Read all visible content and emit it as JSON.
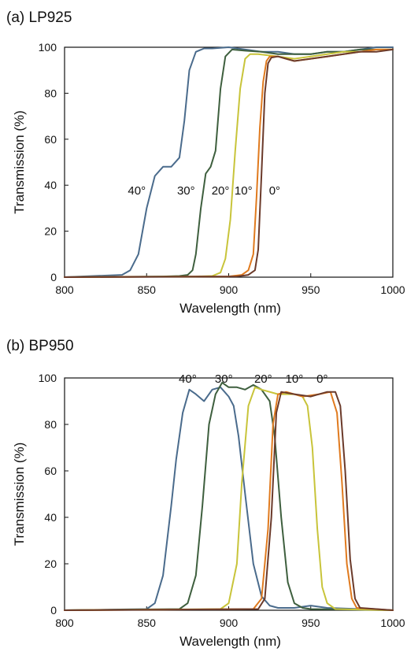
{
  "panels": [
    {
      "title": "(a) LP925"
    },
    {
      "title": "(b) BP950"
    }
  ],
  "chart_data": [
    {
      "type": "line",
      "title": "(a) LP925",
      "xlabel": "Wavelength (nm)",
      "ylabel": "Transmission (%)",
      "xlim": [
        800,
        1000
      ],
      "ylim": [
        0,
        100
      ],
      "xticks": [
        800,
        850,
        900,
        950,
        1000
      ],
      "yticks": [
        0,
        20,
        40,
        60,
        80,
        100
      ],
      "grid": false,
      "annotations": [
        {
          "text": "40°",
          "x": 844,
          "y": 36
        },
        {
          "text": "30°",
          "x": 874,
          "y": 36
        },
        {
          "text": "20°",
          "x": 895,
          "y": 36
        },
        {
          "text": "10°",
          "x": 909,
          "y": 36
        },
        {
          "text": "0°",
          "x": 928,
          "y": 36
        }
      ],
      "series": [
        {
          "color": "#4a6b8c",
          "x": [
            800,
            835,
            840,
            845,
            850,
            855,
            860,
            865,
            870,
            873,
            876,
            880,
            885,
            890,
            900,
            910,
            920,
            930,
            940,
            950,
            960,
            970,
            980,
            990,
            1000
          ],
          "y": [
            0,
            1,
            3,
            10,
            30,
            44,
            48,
            48,
            52,
            68,
            90,
            98,
            99.5,
            99.5,
            100,
            99,
            98,
            98,
            97,
            97,
            98,
            98,
            99,
            100,
            100
          ]
        },
        {
          "color": "#3e5f3e",
          "x": [
            800,
            860,
            870,
            875,
            878,
            880,
            883,
            886,
            889,
            892,
            895,
            898,
            902,
            910,
            920,
            930,
            940,
            950,
            960,
            970,
            980,
            990,
            1000
          ],
          "y": [
            0,
            0.3,
            0.5,
            1,
            3,
            10,
            30,
            45,
            48,
            55,
            82,
            96,
            99,
            98.5,
            98,
            97,
            97,
            97,
            98,
            98,
            99,
            99,
            99
          ]
        },
        {
          "color": "#c8c43a",
          "x": [
            800,
            880,
            890,
            895,
            898,
            901,
            904,
            907,
            910,
            913,
            918,
            930,
            940,
            950,
            960,
            970,
            980,
            990,
            1000
          ],
          "y": [
            0,
            0.3,
            0.5,
            2,
            8,
            25,
            55,
            82,
            95,
            97,
            97,
            96,
            95,
            96,
            97,
            98,
            98,
            99,
            99
          ]
        },
        {
          "color": "#e07a1e",
          "x": [
            800,
            900,
            908,
            912,
            915,
            917,
            919,
            921,
            923,
            925,
            930,
            935,
            940,
            950,
            960,
            970,
            980,
            990,
            1000
          ],
          "y": [
            0,
            0.3,
            1,
            3,
            10,
            35,
            65,
            85,
            94,
            96,
            96,
            95,
            94,
            95,
            96,
            97,
            98,
            99,
            99
          ]
        },
        {
          "color": "#6b3a2a",
          "x": [
            800,
            905,
            912,
            916,
            918,
            920,
            922,
            924,
            926,
            930,
            935,
            940,
            950,
            960,
            970,
            980,
            990,
            1000
          ],
          "y": [
            0,
            0.3,
            1,
            3,
            12,
            45,
            80,
            93,
            95.5,
            96,
            95,
            94,
            95,
            96,
            97,
            98,
            98,
            99
          ]
        }
      ]
    },
    {
      "type": "line",
      "title": "(b) BP950",
      "xlabel": "Wavelength (nm)",
      "ylabel": "Transmission (%)",
      "xlim": [
        800,
        1000
      ],
      "ylim": [
        0,
        100
      ],
      "xticks": [
        800,
        850,
        900,
        950,
        1000
      ],
      "yticks": [
        0,
        20,
        40,
        60,
        80,
        100
      ],
      "grid": false,
      "annotations": [
        {
          "text": "40°",
          "x": 875,
          "y": 98
        },
        {
          "text": "30°",
          "x": 897,
          "y": 98
        },
        {
          "text": "20°",
          "x": 921,
          "y": 98
        },
        {
          "text": "10°",
          "x": 940,
          "y": 98
        },
        {
          "text": "0°",
          "x": 957,
          "y": 98
        }
      ],
      "series": [
        {
          "color": "#4a6b8c",
          "x": [
            800,
            850,
            855,
            860,
            865,
            868,
            872,
            876,
            880,
            885,
            890,
            895,
            900,
            903,
            906,
            910,
            915,
            920,
            925,
            930,
            940,
            950,
            960,
            1000
          ],
          "y": [
            0,
            0.5,
            3,
            15,
            45,
            65,
            85,
            95,
            93,
            90,
            95,
            96,
            92,
            88,
            75,
            50,
            20,
            6,
            2,
            1,
            1,
            2,
            1,
            0
          ]
        },
        {
          "color": "#3e5f3e",
          "x": [
            800,
            870,
            875,
            880,
            884,
            888,
            892,
            896,
            900,
            905,
            910,
            915,
            920,
            925,
            928,
            932,
            936,
            940,
            945,
            950,
            1000
          ],
          "y": [
            0,
            0.5,
            3,
            15,
            45,
            80,
            93,
            98,
            96,
            96,
            95,
            97,
            95,
            90,
            75,
            40,
            12,
            3,
            1,
            0.5,
            0
          ]
        },
        {
          "color": "#c8c43a",
          "x": [
            800,
            895,
            900,
            905,
            908,
            912,
            916,
            920,
            930,
            940,
            945,
            948,
            951,
            954,
            957,
            960,
            965,
            1000
          ],
          "y": [
            0,
            0.5,
            3,
            20,
            55,
            88,
            96,
            95,
            93,
            93,
            92,
            88,
            70,
            35,
            10,
            3,
            0.5,
            0
          ]
        },
        {
          "color": "#e07a1e",
          "x": [
            800,
            915,
            920,
            924,
            927,
            930,
            935,
            945,
            955,
            962,
            966,
            969,
            972,
            975,
            978,
            1000
          ],
          "y": [
            0,
            0.5,
            5,
            35,
            80,
            93,
            94,
            92,
            93,
            94,
            85,
            55,
            20,
            5,
            1,
            0
          ]
        },
        {
          "color": "#6b3a2a",
          "x": [
            800,
            918,
            922,
            926,
            929,
            932,
            940,
            950,
            960,
            965,
            968,
            971,
            974,
            977,
            980,
            1000
          ],
          "y": [
            0,
            0.5,
            5,
            40,
            85,
            94,
            93,
            92,
            94,
            94,
            88,
            60,
            22,
            5,
            1,
            0
          ]
        }
      ]
    }
  ]
}
